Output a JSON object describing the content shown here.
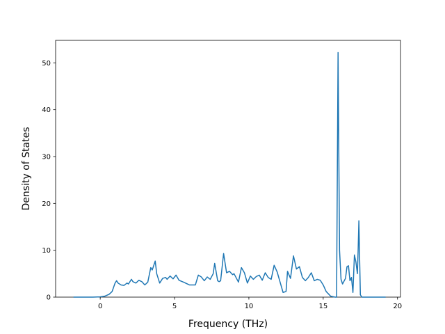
{
  "chart_data": {
    "type": "line",
    "title": "",
    "xlabel": "Frequency (THz)",
    "ylabel": "Density of States",
    "xlim": [
      -3.0,
      20.2
    ],
    "ylim": [
      0,
      54.8
    ],
    "xticks": [
      0,
      5,
      10,
      15,
      20
    ],
    "yticks": [
      0,
      10,
      20,
      30,
      40,
      50
    ],
    "grid": false,
    "legend": "none",
    "series": [
      {
        "color": "#1f77b4",
        "x": [
          -1.8,
          -1.0,
          -0.5,
          0.0,
          0.3,
          0.6,
          0.8,
          1.0,
          1.1,
          1.2,
          1.3,
          1.4,
          1.6,
          1.8,
          1.9,
          2.1,
          2.2,
          2.4,
          2.6,
          2.8,
          3.0,
          3.2,
          3.4,
          3.5,
          3.7,
          3.8,
          4.0,
          4.2,
          4.4,
          4.5,
          4.7,
          4.9,
          5.1,
          5.3,
          5.6,
          6.0,
          6.4,
          6.6,
          6.8,
          7.0,
          7.2,
          7.4,
          7.6,
          7.7,
          7.9,
          8.0,
          8.1,
          8.3,
          8.5,
          8.7,
          8.9,
          9.0,
          9.3,
          9.5,
          9.7,
          9.9,
          10.1,
          10.3,
          10.5,
          10.7,
          10.9,
          11.1,
          11.3,
          11.5,
          11.7,
          11.9,
          12.1,
          12.3,
          12.5,
          12.6,
          12.8,
          13.0,
          13.2,
          13.4,
          13.6,
          13.8,
          14.0,
          14.2,
          14.4,
          14.6,
          14.8,
          15.0,
          15.2,
          15.5,
          15.8,
          15.85,
          15.9,
          16.0,
          16.1,
          16.2,
          16.3,
          16.5,
          16.6,
          16.7,
          16.8,
          16.9,
          17.0,
          17.1,
          17.2,
          17.3,
          17.35,
          17.4,
          17.5,
          17.6,
          17.7,
          18.5,
          19.2
        ],
        "y": [
          0,
          0,
          0,
          0.05,
          0.2,
          0.6,
          1.2,
          3.0,
          3.5,
          3.0,
          2.8,
          2.6,
          2.5,
          3.0,
          2.8,
          3.8,
          3.3,
          3.0,
          3.6,
          3.3,
          2.6,
          3.2,
          6.3,
          5.8,
          7.7,
          5.0,
          3.0,
          4.0,
          4.2,
          3.8,
          4.5,
          3.9,
          4.7,
          3.6,
          3.2,
          2.6,
          2.6,
          4.7,
          4.3,
          3.5,
          4.3,
          3.8,
          5.0,
          7.2,
          3.5,
          3.3,
          3.5,
          9.3,
          5.2,
          5.5,
          4.8,
          5.0,
          3.2,
          6.3,
          5.2,
          3.0,
          4.5,
          3.8,
          4.4,
          4.7,
          3.6,
          5.2,
          4.2,
          3.8,
          6.8,
          5.4,
          3.2,
          1.0,
          1.2,
          5.5,
          4.0,
          8.8,
          6.0,
          6.5,
          4.2,
          3.5,
          4.2,
          5.2,
          3.5,
          3.8,
          3.6,
          2.6,
          1.2,
          0.2,
          0,
          0,
          0,
          52.2,
          10.0,
          3.8,
          2.8,
          4.0,
          6.5,
          6.7,
          3.5,
          4.2,
          1.0,
          9.0,
          7.5,
          5.0,
          10.0,
          16.3,
          0.5,
          0,
          0,
          0,
          0
        ]
      }
    ]
  }
}
